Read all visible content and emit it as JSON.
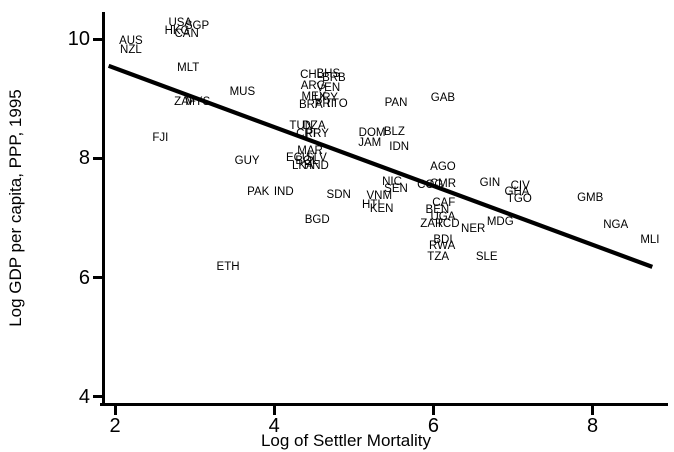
{
  "chart_data": {
    "type": "scatter",
    "title": "",
    "xlabel": "Log of Settler Mortality",
    "ylabel": "Log GDP per capita, PPP, 1995",
    "marker_style": "country-code-text-labels",
    "grid": false,
    "legend": false,
    "axis_color": "#000000",
    "trend_line_color": "#000000",
    "xlim": [
      1.85,
      8.9
    ],
    "ylim": [
      3.85,
      10.45
    ],
    "x_ticks": [
      2,
      4,
      6,
      8
    ],
    "y_ticks": [
      10,
      8,
      6,
      4
    ],
    "trend_line": {
      "x1": 1.92,
      "y1": 9.55,
      "x2": 8.75,
      "y2": 6.18
    },
    "points": [
      {
        "code": "USA",
        "x": 2.82,
        "y": 10.27
      },
      {
        "code": "SGP",
        "x": 3.03,
        "y": 10.22
      },
      {
        "code": "HKG",
        "x": 2.78,
        "y": 10.13
      },
      {
        "code": "CAN",
        "x": 2.9,
        "y": 10.08
      },
      {
        "code": "AUS",
        "x": 2.2,
        "y": 9.97
      },
      {
        "code": "NZL",
        "x": 2.2,
        "y": 9.82
      },
      {
        "code": "MLT",
        "x": 2.92,
        "y": 9.51
      },
      {
        "code": "MUS",
        "x": 3.6,
        "y": 9.11
      },
      {
        "code": "ZAF",
        "x": 2.88,
        "y": 8.94
      },
      {
        "code": "MYS",
        "x": 3.04,
        "y": 8.94
      },
      {
        "code": "FJI",
        "x": 2.57,
        "y": 8.34
      },
      {
        "code": "GUY",
        "x": 3.66,
        "y": 7.95
      },
      {
        "code": "PAK",
        "x": 3.8,
        "y": 7.43
      },
      {
        "code": "IND",
        "x": 4.12,
        "y": 7.43
      },
      {
        "code": "ETH",
        "x": 3.42,
        "y": 6.18
      },
      {
        "code": "BGD",
        "x": 4.54,
        "y": 6.97
      },
      {
        "code": "SDN",
        "x": 4.81,
        "y": 7.38
      },
      {
        "code": "CHL",
        "x": 4.47,
        "y": 9.4
      },
      {
        "code": "BHS",
        "x": 4.68,
        "y": 9.41
      },
      {
        "code": "BRB",
        "x": 4.75,
        "y": 9.35
      },
      {
        "code": "ARG",
        "x": 4.49,
        "y": 9.21
      },
      {
        "code": "VEN",
        "x": 4.68,
        "y": 9.18
      },
      {
        "code": "MEX",
        "x": 4.5,
        "y": 9.03
      },
      {
        "code": "URY",
        "x": 4.65,
        "y": 9.01
      },
      {
        "code": "BRA",
        "x": 4.46,
        "y": 8.89
      },
      {
        "code": "PRI",
        "x": 4.63,
        "y": 8.91
      },
      {
        "code": "TTO",
        "x": 4.78,
        "y": 8.91
      },
      {
        "code": "TUN",
        "x": 4.34,
        "y": 8.54
      },
      {
        "code": "DZA",
        "x": 4.5,
        "y": 8.54
      },
      {
        "code": "CRI",
        "x": 4.4,
        "y": 8.41
      },
      {
        "code": "PRY",
        "x": 4.54,
        "y": 8.41
      },
      {
        "code": "MAR",
        "x": 4.45,
        "y": 8.12
      },
      {
        "code": "ECU",
        "x": 4.3,
        "y": 8.0
      },
      {
        "code": "SLV",
        "x": 4.53,
        "y": 8.0
      },
      {
        "code": "BOL",
        "x": 4.41,
        "y": 7.95
      },
      {
        "code": "LKA",
        "x": 4.36,
        "y": 7.87
      },
      {
        "code": "HND",
        "x": 4.53,
        "y": 7.87
      },
      {
        "code": "PAN",
        "x": 5.53,
        "y": 8.93
      },
      {
        "code": "GAB",
        "x": 6.12,
        "y": 9.01
      },
      {
        "code": "DOM",
        "x": 5.23,
        "y": 8.42
      },
      {
        "code": "BLZ",
        "x": 5.51,
        "y": 8.44
      },
      {
        "code": "JAM",
        "x": 5.2,
        "y": 8.26
      },
      {
        "code": "IDN",
        "x": 5.57,
        "y": 8.19
      },
      {
        "code": "AGO",
        "x": 6.12,
        "y": 7.85
      },
      {
        "code": "NIC",
        "x": 5.48,
        "y": 7.6
      },
      {
        "code": "SEN",
        "x": 5.53,
        "y": 7.49
      },
      {
        "code": "COG",
        "x": 5.96,
        "y": 7.55
      },
      {
        "code": "CMR",
        "x": 6.12,
        "y": 7.57
      },
      {
        "code": "VNM",
        "x": 5.32,
        "y": 7.37
      },
      {
        "code": "HTI",
        "x": 5.22,
        "y": 7.22
      },
      {
        "code": "KEN",
        "x": 5.35,
        "y": 7.15
      },
      {
        "code": "CAF",
        "x": 6.13,
        "y": 7.25
      },
      {
        "code": "BEN",
        "x": 6.05,
        "y": 7.13
      },
      {
        "code": "UGA",
        "x": 6.12,
        "y": 7.02
      },
      {
        "code": "ZAR",
        "x": 5.98,
        "y": 6.9
      },
      {
        "code": "TCD",
        "x": 6.18,
        "y": 6.9
      },
      {
        "code": "BDI",
        "x": 6.12,
        "y": 6.63
      },
      {
        "code": "RWA",
        "x": 6.11,
        "y": 6.53
      },
      {
        "code": "TZA",
        "x": 6.06,
        "y": 6.35
      },
      {
        "code": "NER",
        "x": 6.5,
        "y": 6.81
      },
      {
        "code": "MDG",
        "x": 6.84,
        "y": 6.93
      },
      {
        "code": "SLE",
        "x": 6.67,
        "y": 6.35
      },
      {
        "code": "GIN",
        "x": 6.71,
        "y": 7.59
      },
      {
        "code": "CIV",
        "x": 7.09,
        "y": 7.54
      },
      {
        "code": "GHA",
        "x": 7.05,
        "y": 7.43
      },
      {
        "code": "TGO",
        "x": 7.08,
        "y": 7.32
      },
      {
        "code": "GMB",
        "x": 7.97,
        "y": 7.34
      },
      {
        "code": "NGA",
        "x": 8.29,
        "y": 6.88
      },
      {
        "code": "MLI",
        "x": 8.72,
        "y": 6.63
      }
    ]
  }
}
